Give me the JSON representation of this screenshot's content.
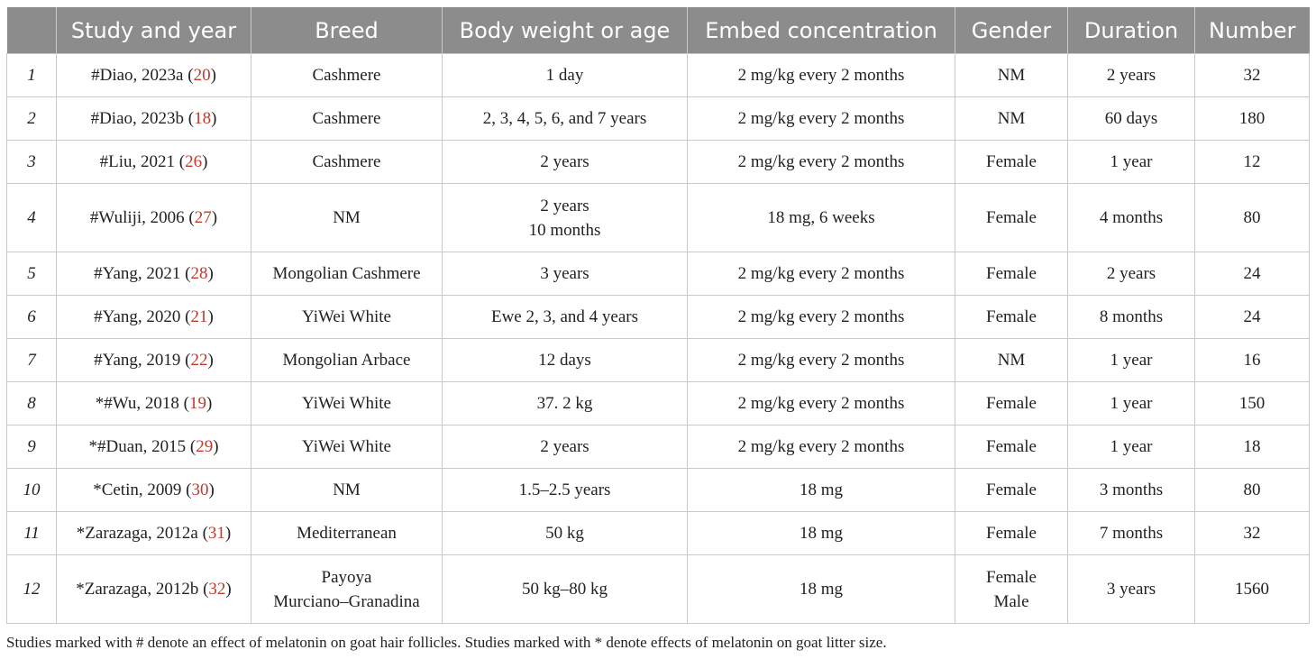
{
  "headers": [
    "",
    "Study and year",
    "Breed",
    "Body weight or age",
    "Embed concentration",
    "Gender",
    "Duration",
    "Number"
  ],
  "rows": [
    {
      "n": "1",
      "study": "#Diao, 2023a (",
      "ref": "20",
      "close": ")",
      "breed": [
        "Cashmere"
      ],
      "age": [
        "1 day"
      ],
      "conc": "2 mg/kg every 2 months",
      "gender": [
        "NM"
      ],
      "duration": "2 years",
      "number": "32"
    },
    {
      "n": "2",
      "study": "#Diao, 2023b (",
      "ref": "18",
      "close": ")",
      "breed": [
        "Cashmere"
      ],
      "age": [
        "2, 3, 4, 5, 6, and 7 years"
      ],
      "conc": "2 mg/kg every 2 months",
      "gender": [
        "NM"
      ],
      "duration": "60 days",
      "number": "180"
    },
    {
      "n": "3",
      "study": "#Liu, 2021 (",
      "ref": "26",
      "close": ")",
      "breed": [
        "Cashmere"
      ],
      "age": [
        "2 years"
      ],
      "conc": "2 mg/kg every 2 months",
      "gender": [
        "Female"
      ],
      "duration": "1 year",
      "number": "12"
    },
    {
      "n": "4",
      "study": "#Wuliji, 2006 (",
      "ref": "27",
      "close": ")",
      "breed": [
        "NM"
      ],
      "age": [
        "2 years",
        "10 months"
      ],
      "conc": "18 mg, 6 weeks",
      "gender": [
        "Female"
      ],
      "duration": "4 months",
      "number": "80"
    },
    {
      "n": "5",
      "study": "#Yang, 2021 (",
      "ref": "28",
      "close": ")",
      "breed": [
        "Mongolian Cashmere"
      ],
      "age": [
        "3 years"
      ],
      "conc": "2 mg/kg every 2 months",
      "gender": [
        "Female"
      ],
      "duration": "2 years",
      "number": "24"
    },
    {
      "n": "6",
      "study": "#Yang, 2020 (",
      "ref": "21",
      "close": ")",
      "breed": [
        "YiWei White"
      ],
      "age": [
        "Ewe 2, 3, and 4 years"
      ],
      "conc": "2 mg/kg every 2 months",
      "gender": [
        "Female"
      ],
      "duration": "8 months",
      "number": "24"
    },
    {
      "n": "7",
      "study": "#Yang, 2019 (",
      "ref": "22",
      "close": ")",
      "breed": [
        "Mongolian Arbace"
      ],
      "age": [
        "12 days"
      ],
      "conc": "2 mg/kg every 2 months",
      "gender": [
        "NM"
      ],
      "duration": "1 year",
      "number": "16"
    },
    {
      "n": "8",
      "study": "*#Wu, 2018 (",
      "ref": "19",
      "close": ")",
      "breed": [
        "YiWei White"
      ],
      "age": [
        "37. 2 kg"
      ],
      "conc": "2 mg/kg every 2 months",
      "gender": [
        "Female"
      ],
      "duration": "1 year",
      "number": "150"
    },
    {
      "n": "9",
      "study": "*#Duan, 2015 (",
      "ref": "29",
      "close": ")",
      "breed": [
        "YiWei White"
      ],
      "age": [
        "2 years"
      ],
      "conc": "2 mg/kg every 2 months",
      "gender": [
        "Female"
      ],
      "duration": "1 year",
      "number": "18"
    },
    {
      "n": "10",
      "study": "*Cetin, 2009 (",
      "ref": "30",
      "close": ")",
      "breed": [
        "NM"
      ],
      "age": [
        "1.5–2.5 years"
      ],
      "conc": "18 mg",
      "gender": [
        "Female"
      ],
      "duration": "3 months",
      "number": "80"
    },
    {
      "n": "11",
      "study": "*Zarazaga, 2012a (",
      "ref": "31",
      "close": ")",
      "breed": [
        "Mediterranean"
      ],
      "age": [
        "50 kg"
      ],
      "conc": "18 mg",
      "gender": [
        "Female"
      ],
      "duration": "7 months",
      "number": "32"
    },
    {
      "n": "12",
      "study": "*Zarazaga, 2012b (",
      "ref": "32",
      "close": ")",
      "breed": [
        "Payoya",
        "Murciano–Granadina"
      ],
      "age": [
        "50 kg–80 kg"
      ],
      "conc": "18 mg",
      "gender": [
        "Female",
        "Male"
      ],
      "duration": "3 years",
      "number": "1560"
    }
  ],
  "footnote": "Studies marked with # denote an effect of melatonin on goat hair follicles. Studies marked with * denote effects of melatonin on goat litter size.",
  "colors": {
    "header_bg": "#8c8c8c",
    "header_text": "#ffffff",
    "ref_link": "#c0392b",
    "grid": "#c9c9c9"
  }
}
